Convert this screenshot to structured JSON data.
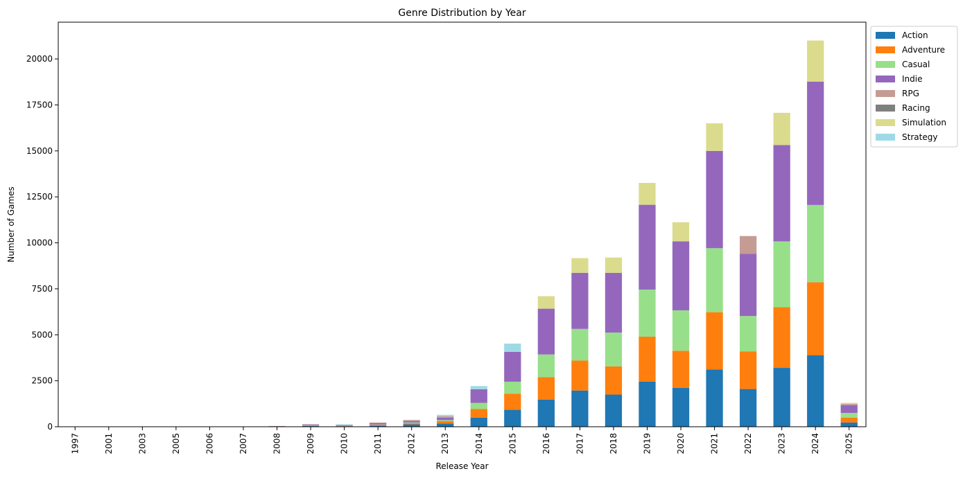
{
  "chart_data": {
    "type": "bar",
    "stacked": true,
    "title": "Genre Distribution by Year",
    "xlabel": "Release Year",
    "ylabel": "Number of Games",
    "ylim": [
      0,
      22000
    ],
    "yticks": [
      0,
      2500,
      5000,
      7500,
      10000,
      12500,
      15000,
      17500,
      20000
    ],
    "legend_position": "outside-top-right",
    "grid": false,
    "categories": [
      "1997",
      "2001",
      "2003",
      "2005",
      "2006",
      "2007",
      "2008",
      "2009",
      "2010",
      "2011",
      "2012",
      "2013",
      "2014",
      "2015",
      "2016",
      "2017",
      "2018",
      "2019",
      "2020",
      "2021",
      "2022",
      "2023",
      "2024",
      "2025"
    ],
    "series": [
      {
        "name": "Action",
        "color": "#1f77b4",
        "values": [
          0,
          0,
          0,
          0,
          0,
          0,
          5,
          40,
          30,
          60,
          130,
          180,
          500,
          920,
          1480,
          1970,
          1750,
          2450,
          2120,
          3110,
          2050,
          3200,
          3880,
          230
        ]
      },
      {
        "name": "Adventure",
        "color": "#ff7f0e",
        "values": [
          0,
          0,
          0,
          0,
          0,
          0,
          5,
          30,
          10,
          40,
          60,
          130,
          460,
          880,
          1220,
          1630,
          1530,
          2450,
          2010,
          3120,
          2050,
          3300,
          3980,
          270
        ]
      },
      {
        "name": "Casual",
        "color": "#98df8a",
        "values": [
          0,
          0,
          0,
          0,
          0,
          0,
          0,
          10,
          10,
          20,
          40,
          50,
          340,
          650,
          1230,
          1720,
          1840,
          2560,
          2200,
          3480,
          1920,
          3580,
          4200,
          250
        ]
      },
      {
        "name": "Indie",
        "color": "#9467bd",
        "values": [
          0,
          0,
          0,
          0,
          0,
          0,
          20,
          30,
          40,
          80,
          80,
          140,
          740,
          1620,
          2490,
          3050,
          3250,
          4610,
          3750,
          5290,
          3380,
          5240,
          6710,
          430
        ]
      },
      {
        "name": "RPG",
        "color": "#c49c94",
        "values": [
          0,
          0,
          0,
          0,
          0,
          0,
          10,
          30,
          0,
          30,
          60,
          70,
          0,
          0,
          0,
          0,
          0,
          0,
          0,
          0,
          970,
          0,
          0,
          60
        ]
      },
      {
        "name": "Racing",
        "color": "#7f7f7f",
        "values": [
          0,
          0,
          0,
          0,
          0,
          0,
          0,
          0,
          0,
          0,
          0,
          0,
          0,
          0,
          0,
          0,
          0,
          0,
          0,
          0,
          0,
          0,
          0,
          0
        ]
      },
      {
        "name": "Simulation",
        "color": "#dbdb8d",
        "values": [
          0,
          0,
          0,
          0,
          0,
          0,
          0,
          0,
          0,
          0,
          0,
          0,
          0,
          0,
          680,
          800,
          830,
          1190,
          1040,
          1500,
          0,
          1750,
          2230,
          60
        ]
      },
      {
        "name": "Strategy",
        "color": "#9edae5",
        "values": [
          0,
          0,
          0,
          0,
          0,
          0,
          0,
          0,
          40,
          0,
          0,
          80,
          170,
          450,
          0,
          0,
          0,
          0,
          0,
          0,
          0,
          0,
          0,
          0
        ]
      }
    ]
  }
}
